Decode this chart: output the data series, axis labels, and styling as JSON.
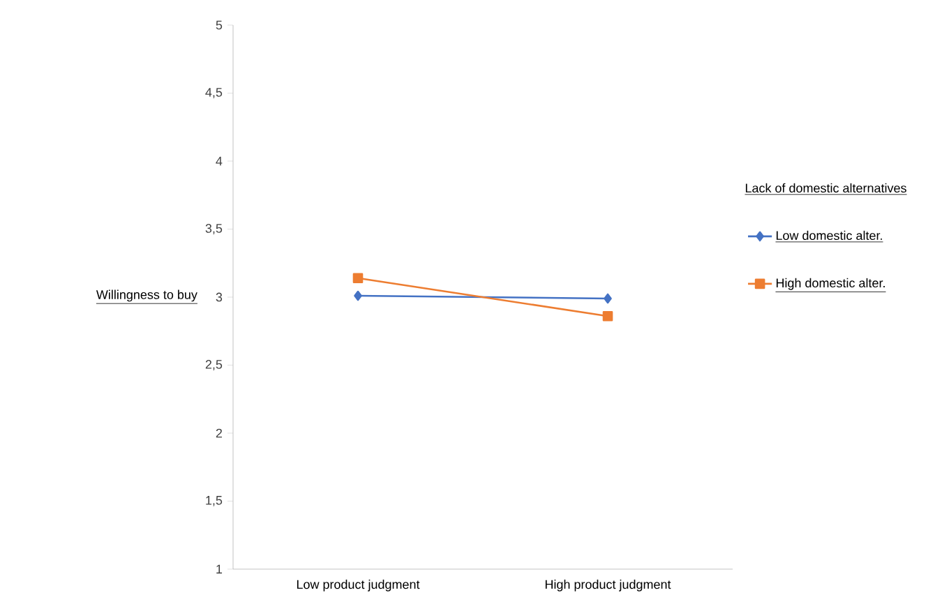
{
  "chart_data": {
    "type": "line",
    "ylabel": "Willingness to buy",
    "legend_title": "Lack of domestic alternatives",
    "legend": "right",
    "categories": [
      "Low product judgment",
      "High product judgment"
    ],
    "series": [
      {
        "name": "Low domestic alter.",
        "color": "#4472c4",
        "marker": "diamond",
        "values": [
          3.01,
          2.99
        ]
      },
      {
        "name": "High domestic alter.",
        "color": "#ed7d31",
        "marker": "square",
        "values": [
          3.14,
          2.86
        ]
      }
    ],
    "ylim": [
      1,
      5
    ],
    "yticks": [
      1,
      {
        "value": 1.5,
        "label": "1,5"
      },
      2,
      {
        "value": 2.5,
        "label": "2,5"
      },
      3,
      {
        "value": 3.5,
        "label": "3,5"
      },
      4,
      {
        "value": 4.5,
        "label": "4,5"
      },
      5
    ]
  }
}
